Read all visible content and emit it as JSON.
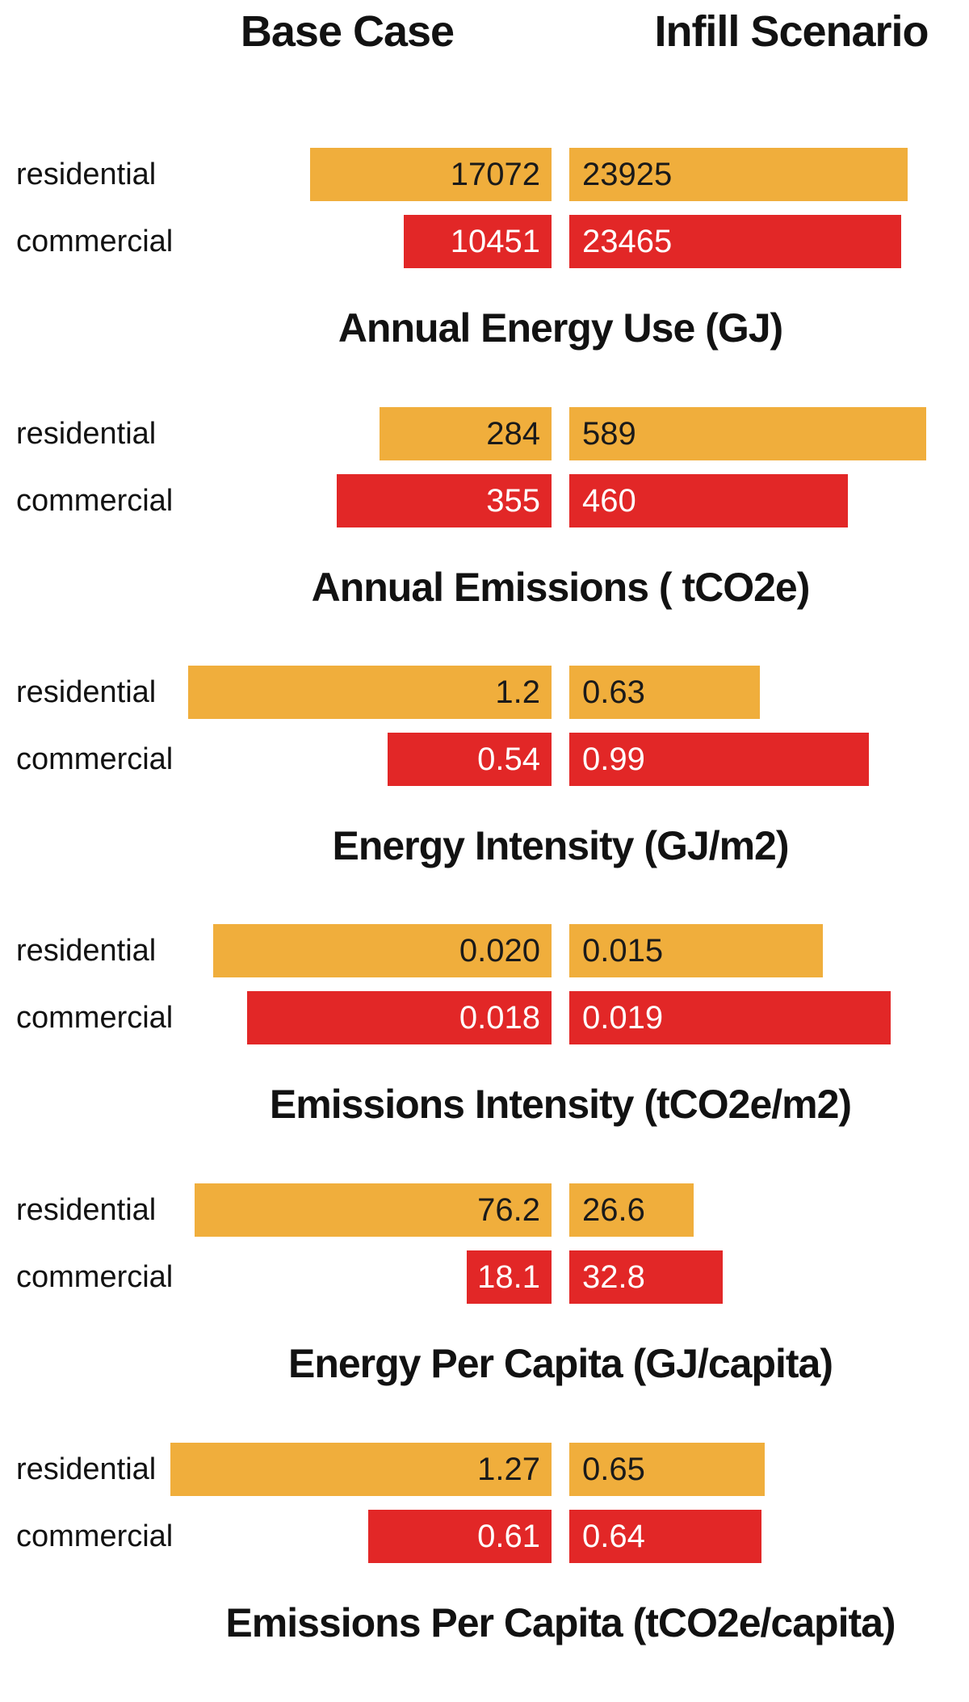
{
  "page": {
    "background": "#ffffff"
  },
  "header": {
    "base_case": "Base Case",
    "infill": "Infill Scenario"
  },
  "colors": {
    "residential_bar": "#F0AE3C",
    "commercial_bar": "#E22727",
    "text_on_residential": "#1a1a1a",
    "text_on_commercial": "#ffffff",
    "heading_text": "#121212"
  },
  "chart_data": [
    {
      "type": "bar",
      "title": "Annual Energy Use (GJ)",
      "categories": [
        "residential",
        "commercial"
      ],
      "xmax": 25700,
      "series": [
        {
          "name": "Base Case",
          "values": [
            17072,
            10451
          ],
          "labels": [
            "17072",
            "10451"
          ]
        },
        {
          "name": "Infill Scenario",
          "values": [
            23925,
            23465
          ],
          "labels": [
            "23925",
            "23465"
          ]
        }
      ]
    },
    {
      "type": "bar",
      "title": "Annual Emissions ( tCO2e)",
      "categories": [
        "residential",
        "commercial"
      ],
      "xmax": 600,
      "series": [
        {
          "name": "Base Case",
          "values": [
            284,
            355
          ],
          "labels": [
            "284",
            "355"
          ]
        },
        {
          "name": "Infill Scenario",
          "values": [
            589,
            460
          ],
          "labels": [
            "589",
            "460"
          ]
        }
      ]
    },
    {
      "type": "bar",
      "title": "Energy Intensity (GJ/m2)",
      "categories": [
        "residential",
        "commercial"
      ],
      "xmax": 1.2,
      "series": [
        {
          "name": "Base Case",
          "values": [
            1.2,
            0.54
          ],
          "labels": [
            "1.2",
            "0.54"
          ]
        },
        {
          "name": "Infill Scenario",
          "values": [
            0.63,
            0.99
          ],
          "labels": [
            "0.63",
            "0.99"
          ]
        }
      ]
    },
    {
      "type": "bar",
      "title": "Emissions Intensity (tCO2e/m2)",
      "categories": [
        "residential",
        "commercial"
      ],
      "xmax": 0.0215,
      "series": [
        {
          "name": "Base Case",
          "values": [
            0.02,
            0.018
          ],
          "labels": [
            "0.020",
            "0.018"
          ]
        },
        {
          "name": "Infill Scenario",
          "values": [
            0.015,
            0.019
          ],
          "labels": [
            "0.015",
            "0.019"
          ]
        }
      ]
    },
    {
      "type": "bar",
      "title": "Energy Per Capita (GJ/capita)",
      "categories": [
        "residential",
        "commercial"
      ],
      "xmax": 77.6,
      "series": [
        {
          "name": "Base Case",
          "values": [
            76.2,
            18.1
          ],
          "labels": [
            "76.2",
            "18.1"
          ]
        },
        {
          "name": "Infill Scenario",
          "values": [
            26.6,
            32.8
          ],
          "labels": [
            "26.6",
            "32.8"
          ]
        }
      ]
    },
    {
      "type": "bar",
      "title": "Emissions Per Capita (tCO2e/capita)",
      "categories": [
        "residential",
        "commercial"
      ],
      "xmax": 1.21,
      "series": [
        {
          "name": "Base Case",
          "values": [
            1.27,
            0.61
          ],
          "labels": [
            "1.27",
            "0.61"
          ]
        },
        {
          "name": "Infill Scenario",
          "values": [
            0.65,
            0.64
          ],
          "labels": [
            "0.65",
            "0.64"
          ]
        }
      ]
    }
  ]
}
